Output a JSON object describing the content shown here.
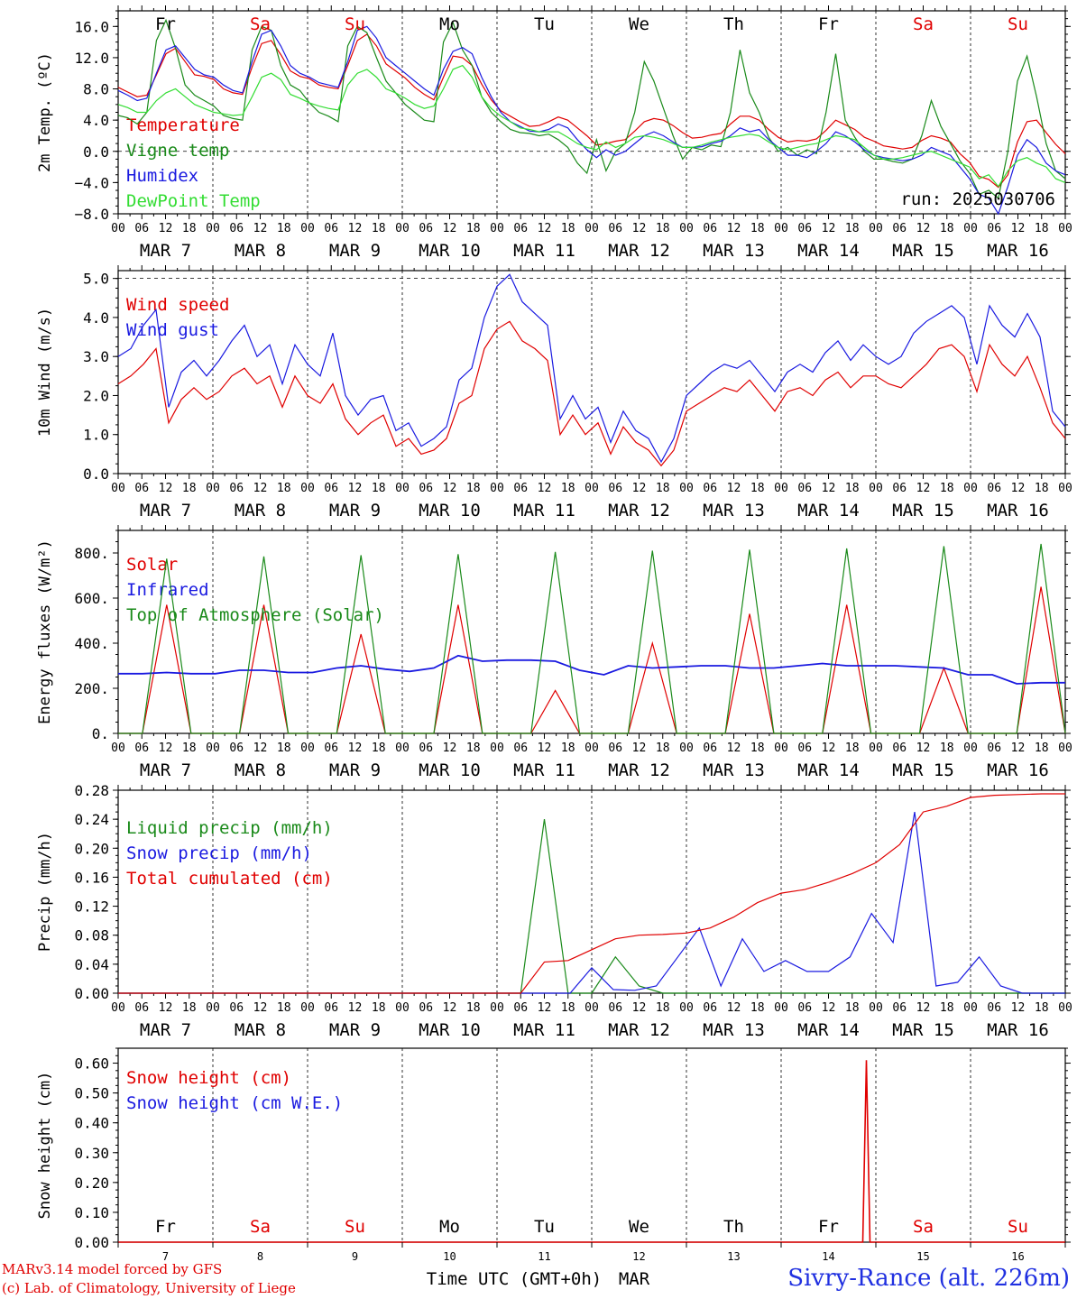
{
  "colors": {
    "red": "#e00000",
    "green": "#1a8a1a",
    "blue": "#1a1ae0",
    "lime": "#33dd33",
    "black": "#000000",
    "dayred": "#e00000"
  },
  "days": {
    "top": [
      "Fr",
      "Sa",
      "Su",
      "Mo",
      "Tu",
      "We",
      "Th",
      "Fr",
      "Sa",
      "Su"
    ],
    "top_colors": [
      "black",
      "red",
      "red",
      "black",
      "black",
      "black",
      "black",
      "black",
      "red",
      "red"
    ]
  },
  "hour_ticks": [
    "00",
    "06",
    "12",
    "18"
  ],
  "hour_end": "00",
  "date_labels": [
    "MAR  7",
    "MAR  8",
    "MAR  9",
    "MAR 10",
    "MAR 11",
    "MAR 12",
    "MAR 13",
    "MAR 14",
    "MAR 15",
    "MAR 16"
  ],
  "bottom_day_numbers": [
    "7",
    "8",
    "9",
    "10",
    "11",
    "12",
    "13",
    "14",
    "15",
    "16"
  ],
  "xlabel": "Time UTC (GMT+0h)",
  "xlabel_month": "MAR",
  "credits": [
    "MARv3.14 model forced by GFS",
    "(c) Lab. of Climatology, University of Liege"
  ],
  "station": "Sivry-Rance (alt. 226m)",
  "run_label": "run: 2025030706",
  "chart_data": [
    {
      "type": "line",
      "id": "temp",
      "ylabel": "2m Temp. (ºC)",
      "ylim": [
        -8,
        18
      ],
      "yticks": [
        "16.0",
        "12.0",
        "8.0",
        "4.0",
        "0.0",
        "−4.0",
        "−8.0"
      ],
      "ytick_values": [
        16,
        12,
        8,
        4,
        0,
        -4,
        -8
      ],
      "zero_line": true,
      "x_hours_step": 6,
      "series": [
        {
          "name": "Temperature",
          "color": "red",
          "values": [
            8.2,
            7.6,
            7.0,
            7.2,
            9.8,
            12.5,
            13.2,
            11.5,
            9.8,
            9.6,
            9.2,
            8.0,
            7.5,
            7.3,
            10.8,
            13.8,
            14.2,
            12.4,
            10.3,
            9.6,
            9.3,
            8.5,
            8.2,
            8.0,
            11.0,
            14.2,
            15.0,
            13.5,
            11.2,
            10.3,
            9.4,
            8.2,
            7.3,
            6.6,
            9.5,
            12.2,
            12.0,
            11.0,
            8.6,
            6.6,
            5.2,
            4.5,
            3.8,
            3.2,
            3.3,
            3.8,
            4.4,
            4.0,
            3.0,
            2.0,
            0.8,
            1.0,
            1.3,
            1.5,
            2.6,
            3.8,
            4.2,
            4.0,
            3.3,
            2.4,
            1.7,
            1.8,
            2.1,
            2.3,
            3.5,
            4.5,
            4.5,
            4.0,
            2.8,
            1.8,
            1.2,
            1.4,
            1.3,
            1.6,
            2.7,
            4.0,
            3.4,
            2.8,
            1.8,
            1.3,
            0.7,
            0.5,
            0.3,
            0.5,
            1.4,
            2.0,
            1.7,
            1.2,
            -0.3,
            -1.4,
            -3.2,
            -3.6,
            -4.6,
            -3.0,
            1.2,
            3.8,
            4.0,
            2.4,
            0.9,
            -0.3
          ]
        },
        {
          "name": "Vigne temp",
          "color": "green",
          "values": [
            4.6,
            4.3,
            3.5,
            5.0,
            14.2,
            16.8,
            13.2,
            8.5,
            7.2,
            6.5,
            5.8,
            4.6,
            4.2,
            4.0,
            13.0,
            16.0,
            15.5,
            11.0,
            8.5,
            7.8,
            6.2,
            5.0,
            4.5,
            3.8,
            13.5,
            16.0,
            15.2,
            12.0,
            9.0,
            7.5,
            6.0,
            5.0,
            4.0,
            3.8,
            14.0,
            16.5,
            13.0,
            11.0,
            7.0,
            5.0,
            3.8,
            2.8,
            2.4,
            2.3,
            2.0,
            2.2,
            1.5,
            0.5,
            -1.5,
            -2.8,
            1.5,
            -2.5,
            0.0,
            1.0,
            5.0,
            11.5,
            9.0,
            5.5,
            2.0,
            -1.0,
            0.5,
            0.2,
            0.8,
            0.6,
            5.0,
            13.0,
            7.5,
            5.0,
            1.8,
            0.0,
            0.5,
            -0.5,
            0.2,
            -0.3,
            5.0,
            12.5,
            4.0,
            1.8,
            0.0,
            -1.0,
            -1.0,
            -1.3,
            -1.5,
            -1.0,
            2.0,
            6.5,
            3.2,
            1.0,
            -1.2,
            -2.8,
            -5.5,
            -5.0,
            -6.0,
            0.0,
            9.0,
            12.2,
            7.0,
            1.0,
            -2.5,
            -3.5
          ]
        },
        {
          "name": "Humidex",
          "color": "blue",
          "values": [
            7.8,
            7.2,
            6.5,
            6.8,
            10.0,
            13.0,
            13.5,
            12.0,
            10.5,
            9.8,
            9.5,
            8.5,
            7.8,
            7.5,
            11.5,
            15.0,
            15.5,
            13.5,
            11.0,
            10.0,
            9.5,
            8.8,
            8.5,
            8.2,
            11.5,
            15.5,
            16.0,
            14.5,
            12.0,
            11.0,
            10.0,
            9.0,
            8.0,
            7.2,
            10.5,
            12.8,
            13.3,
            12.5,
            9.5,
            7.0,
            5.0,
            3.8,
            3.2,
            2.6,
            2.5,
            2.8,
            3.5,
            3.0,
            1.5,
            0.2,
            -0.8,
            0.2,
            -0.5,
            0.0,
            1.0,
            2.0,
            2.5,
            2.0,
            1.2,
            0.5,
            0.5,
            0.6,
            1.0,
            1.3,
            2.0,
            3.0,
            2.5,
            2.8,
            1.5,
            0.5,
            -0.5,
            -0.5,
            -0.8,
            0.0,
            1.0,
            2.5,
            2.0,
            1.2,
            0.2,
            -0.5,
            -0.8,
            -1.0,
            -1.2,
            -1.0,
            -0.5,
            0.5,
            0.0,
            -0.5,
            -2.0,
            -3.5,
            -5.5,
            -6.0,
            -8.0,
            -4.5,
            -0.5,
            1.5,
            0.5,
            -1.5,
            -2.5,
            -3.0
          ]
        },
        {
          "name": "DewPoint Temp",
          "color": "lime",
          "values": [
            6.0,
            5.6,
            5.0,
            5.0,
            6.5,
            7.5,
            8.0,
            7.0,
            6.0,
            5.5,
            5.0,
            4.8,
            4.6,
            4.7,
            7.0,
            9.5,
            10.0,
            9.2,
            7.3,
            6.8,
            6.2,
            5.8,
            5.5,
            5.3,
            8.5,
            10.0,
            10.5,
            9.5,
            8.0,
            7.5,
            6.8,
            6.0,
            5.5,
            5.8,
            8.0,
            10.5,
            11.0,
            9.5,
            7.0,
            5.5,
            4.5,
            3.8,
            3.0,
            2.8,
            2.5,
            2.5,
            2.5,
            1.8,
            1.0,
            0.5,
            0.2,
            1.2,
            0.5,
            1.0,
            1.8,
            2.0,
            1.8,
            1.5,
            1.0,
            0.5,
            0.5,
            0.8,
            1.2,
            1.5,
            1.8,
            2.0,
            2.2,
            2.0,
            1.2,
            0.5,
            0.2,
            0.5,
            0.8,
            1.0,
            1.5,
            2.0,
            1.8,
            1.5,
            0.5,
            -0.5,
            -1.0,
            -1.0,
            -0.8,
            -0.5,
            -0.2,
            0.0,
            -0.5,
            -1.0,
            -1.5,
            -2.0,
            -3.5,
            -3.0,
            -4.5,
            -2.5,
            -1.2,
            -0.8,
            -1.5,
            -2.0,
            -3.5,
            -4.0
          ]
        }
      ]
    },
    {
      "type": "line",
      "id": "wind",
      "ylabel": "10m Wind (m/s)",
      "ylim": [
        0,
        5.2
      ],
      "yticks": [
        "5.0",
        "4.0",
        "3.0",
        "2.0",
        "1.0",
        "0.0"
      ],
      "ytick_values": [
        5,
        4,
        3,
        2,
        1,
        0
      ],
      "ref_line": 5,
      "x_hours_step": 6,
      "series": [
        {
          "name": "Wind speed",
          "color": "red",
          "values": [
            2.3,
            2.5,
            2.8,
            3.2,
            1.3,
            1.9,
            2.2,
            1.9,
            2.1,
            2.5,
            2.7,
            2.3,
            2.5,
            1.7,
            2.5,
            2.0,
            1.8,
            2.3,
            1.4,
            1.0,
            1.3,
            1.5,
            0.7,
            0.9,
            0.5,
            0.6,
            0.9,
            1.8,
            2.0,
            3.2,
            3.7,
            3.9,
            3.4,
            3.2,
            2.9,
            1.0,
            1.5,
            1.0,
            1.3,
            0.5,
            1.2,
            0.8,
            0.6,
            0.2,
            0.6,
            1.6,
            1.8,
            2.0,
            2.2,
            2.1,
            2.4,
            2.0,
            1.6,
            2.1,
            2.2,
            2.0,
            2.4,
            2.6,
            2.2,
            2.5,
            2.5,
            2.3,
            2.2,
            2.5,
            2.8,
            3.2,
            3.3,
            3.0,
            2.1,
            3.3,
            2.8,
            2.5,
            3.0,
            2.2,
            1.3,
            0.9
          ]
        },
        {
          "name": "Wind gust",
          "color": "blue",
          "values": [
            3.0,
            3.2,
            3.8,
            4.2,
            1.7,
            2.6,
            2.9,
            2.5,
            2.9,
            3.4,
            3.8,
            3.0,
            3.3,
            2.3,
            3.3,
            2.8,
            2.5,
            3.6,
            2.0,
            1.5,
            1.9,
            2.0,
            1.1,
            1.3,
            0.7,
            0.9,
            1.2,
            2.4,
            2.7,
            4.0,
            4.8,
            5.1,
            4.4,
            4.1,
            3.8,
            1.4,
            2.0,
            1.4,
            1.7,
            0.8,
            1.6,
            1.1,
            0.9,
            0.3,
            0.9,
            2.0,
            2.3,
            2.6,
            2.8,
            2.7,
            2.9,
            2.5,
            2.1,
            2.6,
            2.8,
            2.6,
            3.1,
            3.4,
            2.9,
            3.3,
            3.0,
            2.8,
            3.0,
            3.6,
            3.9,
            4.1,
            4.3,
            4.0,
            2.8,
            4.3,
            3.8,
            3.5,
            4.1,
            3.5,
            1.6,
            1.2
          ]
        }
      ]
    },
    {
      "type": "line",
      "id": "flux",
      "ylabel": "Energy fluxes (W/m²)",
      "ylim": [
        0,
        900
      ],
      "yticks": [
        "800.",
        "600.",
        "400.",
        "200.",
        "0."
      ],
      "ytick_values": [
        800,
        600,
        400,
        200,
        0
      ],
      "x_hours_step": 6,
      "series": [
        {
          "name": "Solar",
          "color": "red",
          "values": [
            0,
            0,
            570,
            0,
            0,
            0,
            570,
            0,
            0,
            0,
            440,
            0,
            0,
            0,
            570,
            0,
            0,
            0,
            190,
            0,
            0,
            0,
            400,
            0,
            0,
            0,
            530,
            0,
            0,
            0,
            570,
            0,
            0,
            0,
            290,
            0,
            0,
            0,
            650,
            0
          ]
        },
        {
          "name": "Infrared",
          "color": "blue",
          "values": [
            265,
            265,
            270,
            265,
            265,
            280,
            280,
            270,
            270,
            290,
            300,
            285,
            275,
            290,
            345,
            320,
            325,
            325,
            320,
            280,
            260,
            300,
            290,
            295,
            300,
            300,
            290,
            290,
            300,
            310,
            300,
            300,
            300,
            295,
            290,
            260,
            260,
            220,
            225,
            225
          ]
        },
        {
          "name": "Top of Atmosphere (Solar)",
          "color": "green",
          "values": [
            0,
            0,
            775,
            0,
            0,
            0,
            785,
            0,
            0,
            0,
            790,
            0,
            0,
            0,
            795,
            0,
            0,
            0,
            805,
            0,
            0,
            0,
            810,
            0,
            0,
            0,
            815,
            0,
            0,
            0,
            820,
            0,
            0,
            0,
            830,
            0,
            0,
            0,
            840,
            0
          ]
        }
      ]
    },
    {
      "type": "line",
      "id": "precip",
      "ylabel": "Precip (mm/h)",
      "ylim": [
        0,
        0.28
      ],
      "yticks": [
        "0.28",
        "0.24",
        "0.20",
        "0.16",
        "0.12",
        "0.08",
        "0.04",
        "0.00"
      ],
      "ytick_values": [
        0.28,
        0.24,
        0.2,
        0.16,
        0.12,
        0.08,
        0.04,
        0.0
      ],
      "x_hours_step": 6,
      "series": [
        {
          "name": "Liquid precip (mm/h)",
          "color": "green",
          "values": [
            0,
            0,
            0,
            0,
            0,
            0,
            0,
            0,
            0,
            0,
            0,
            0,
            0,
            0,
            0,
            0,
            0,
            0,
            0.24,
            0,
            0,
            0.05,
            0.01,
            0,
            0,
            0,
            0,
            0,
            0,
            0,
            0,
            0,
            0,
            0,
            0,
            0,
            0,
            0,
            0,
            0,
            0
          ]
        },
        {
          "name": "Snow precip (mm/h)",
          "color": "blue",
          "values": [
            0,
            0,
            0,
            0,
            0,
            0,
            0,
            0,
            0,
            0,
            0,
            0,
            0,
            0,
            0,
            0,
            0,
            0,
            0,
            0,
            0,
            0,
            0.035,
            0.005,
            0.004,
            0.01,
            0.05,
            0.09,
            0.01,
            0.075,
            0.03,
            0.045,
            0.03,
            0.03,
            0.05,
            0.11,
            0.07,
            0.25,
            0.01,
            0.015,
            0.05,
            0.01,
            0,
            0,
            0
          ]
        },
        {
          "name": "Total cumulated (cm)",
          "color": "red",
          "values": [
            0,
            0,
            0,
            0,
            0,
            0,
            0,
            0,
            0,
            0,
            0,
            0,
            0,
            0,
            0,
            0,
            0,
            0,
            0.043,
            0.045,
            0.06,
            0.075,
            0.08,
            0.081,
            0.083,
            0.09,
            0.105,
            0.125,
            0.138,
            0.143,
            0.153,
            0.165,
            0.18,
            0.205,
            0.25,
            0.258,
            0.27,
            0.273,
            0.274,
            0.275,
            0.275
          ]
        }
      ]
    },
    {
      "type": "line",
      "id": "snow",
      "ylabel": "Snow height (cm)",
      "ylim": [
        0,
        0.65
      ],
      "yticks": [
        "0.60",
        "0.50",
        "0.40",
        "0.30",
        "0.20",
        "0.10",
        "0.00"
      ],
      "ytick_values": [
        0.6,
        0.5,
        0.4,
        0.3,
        0.2,
        0.1,
        0
      ],
      "series": [
        {
          "name": "Snow height (cm)",
          "color": "red",
          "peak_day_index": 7.9,
          "peak_value": 0.61
        },
        {
          "name": "Snow height (cm W.E.)",
          "color": "blue"
        }
      ]
    }
  ]
}
